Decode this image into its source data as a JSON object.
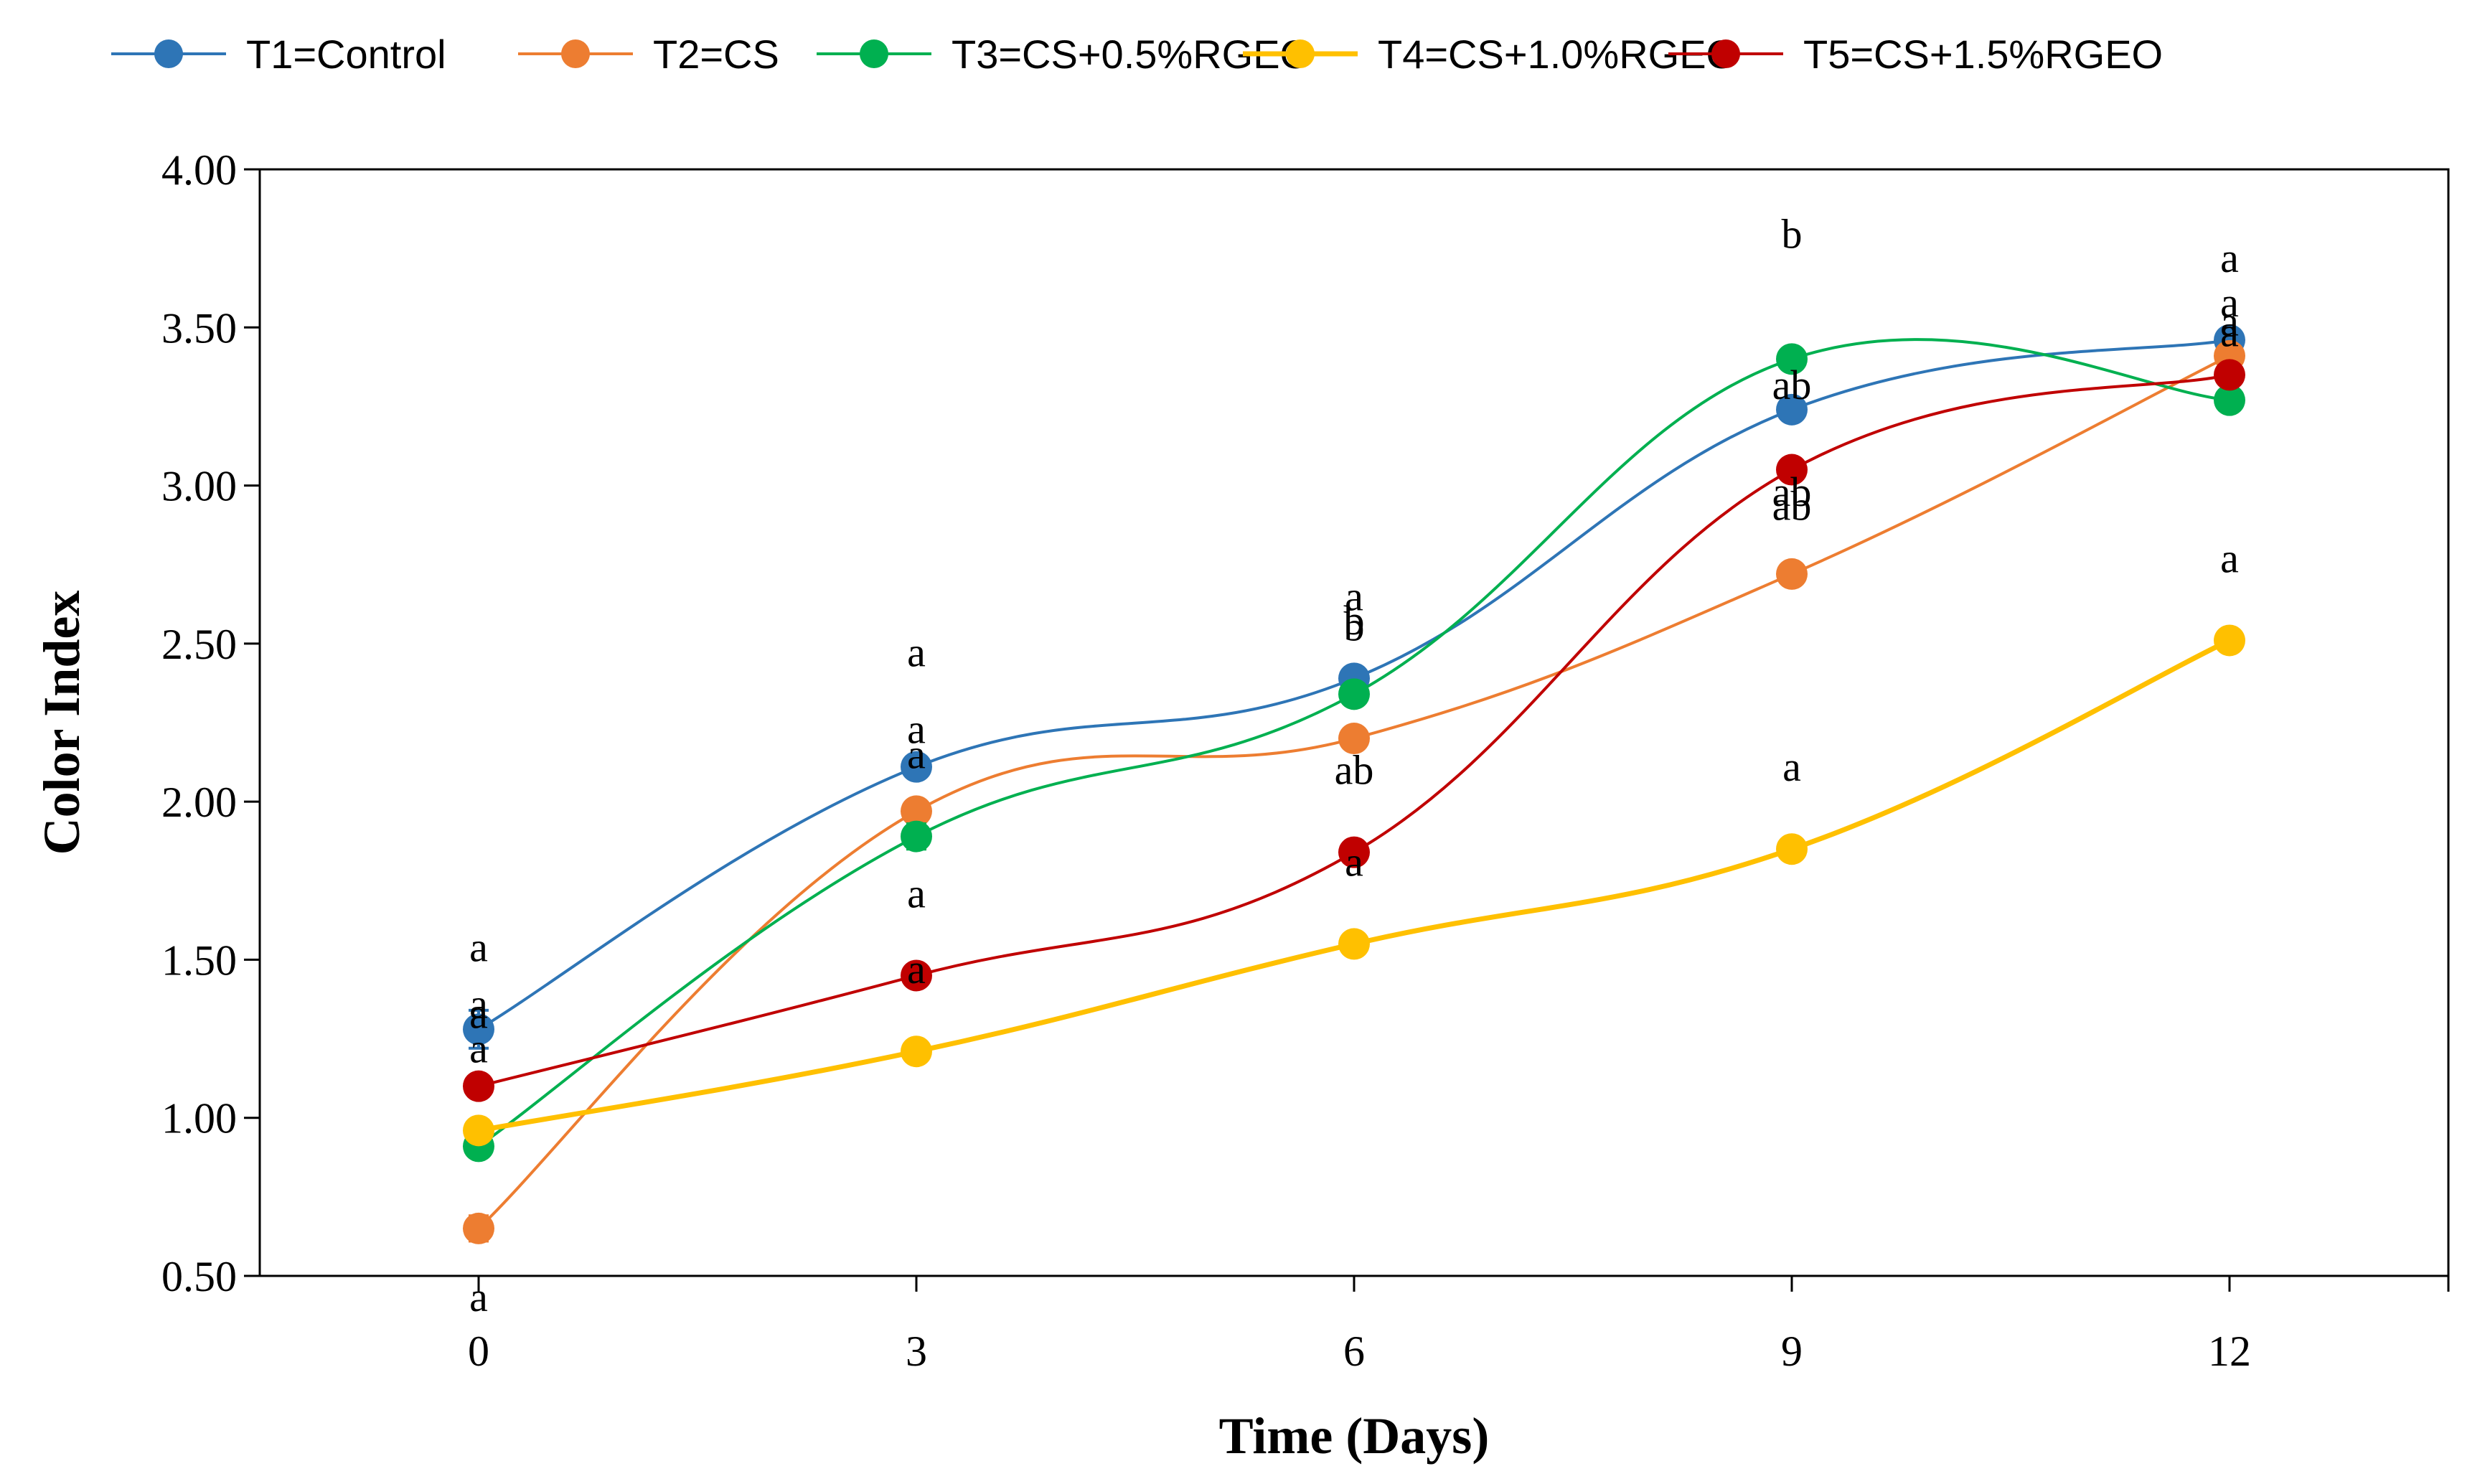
{
  "chart_data": {
    "type": "line",
    "title": "",
    "xlabel": "Time (Days)",
    "ylabel": "Color Index",
    "x": [
      0,
      3,
      6,
      9,
      12
    ],
    "x_tick_labels": [
      "0",
      "3",
      "6",
      "9",
      "12"
    ],
    "y_tick_labels": [
      "0.50",
      "1.00",
      "1.50",
      "2.00",
      "2.50",
      "3.00",
      "3.50",
      "4.00"
    ],
    "xlim": [
      -1.5,
      13.5
    ],
    "ylim": [
      0.5,
      4.0
    ],
    "grid": false,
    "legend_position": "top",
    "series": [
      {
        "name": "T1=Control",
        "color": "#2E75B6",
        "values": [
          1.28,
          2.11,
          2.39,
          3.24,
          3.46
        ],
        "errors": [
          0.06,
          0.03,
          0.03,
          0.03,
          0.03
        ],
        "labels": [
          "a",
          "a",
          "a",
          "ab",
          "a"
        ]
      },
      {
        "name": "T2=CS",
        "color": "#ED7D31",
        "values": [
          0.65,
          1.97,
          2.2,
          2.72,
          3.41
        ],
        "errors": [
          0.04,
          0.03,
          0.03,
          0.03,
          0.03
        ],
        "labels": [
          "a",
          "a",
          "b",
          "ab",
          "a"
        ]
      },
      {
        "name": "T3=CS+0.5%RGEO",
        "color": "#00B050",
        "values": [
          0.91,
          1.89,
          2.34,
          3.4,
          3.27
        ],
        "errors": [
          0.03,
          0.04,
          0.03,
          0.03,
          0.03
        ],
        "labels": [
          "a",
          "a",
          "b",
          "b",
          "a"
        ]
      },
      {
        "name": "T4=CS+1.0%RGEO",
        "color": "#FFC000",
        "values": [
          0.96,
          1.21,
          1.55,
          1.85,
          2.51
        ],
        "errors": [
          0.03,
          0.03,
          0.03,
          0.03,
          0.03
        ],
        "labels": [
          "a",
          "a",
          "a",
          "a",
          "a"
        ]
      },
      {
        "name": "T5=CS+1.5%RGEO",
        "color": "#C00000",
        "values": [
          1.1,
          1.45,
          1.84,
          3.05,
          3.35
        ],
        "errors": [
          0.03,
          0.03,
          0.03,
          0.03,
          0.03
        ],
        "labels": [
          "a",
          "a",
          "ab",
          "ab",
          "a"
        ]
      }
    ]
  }
}
